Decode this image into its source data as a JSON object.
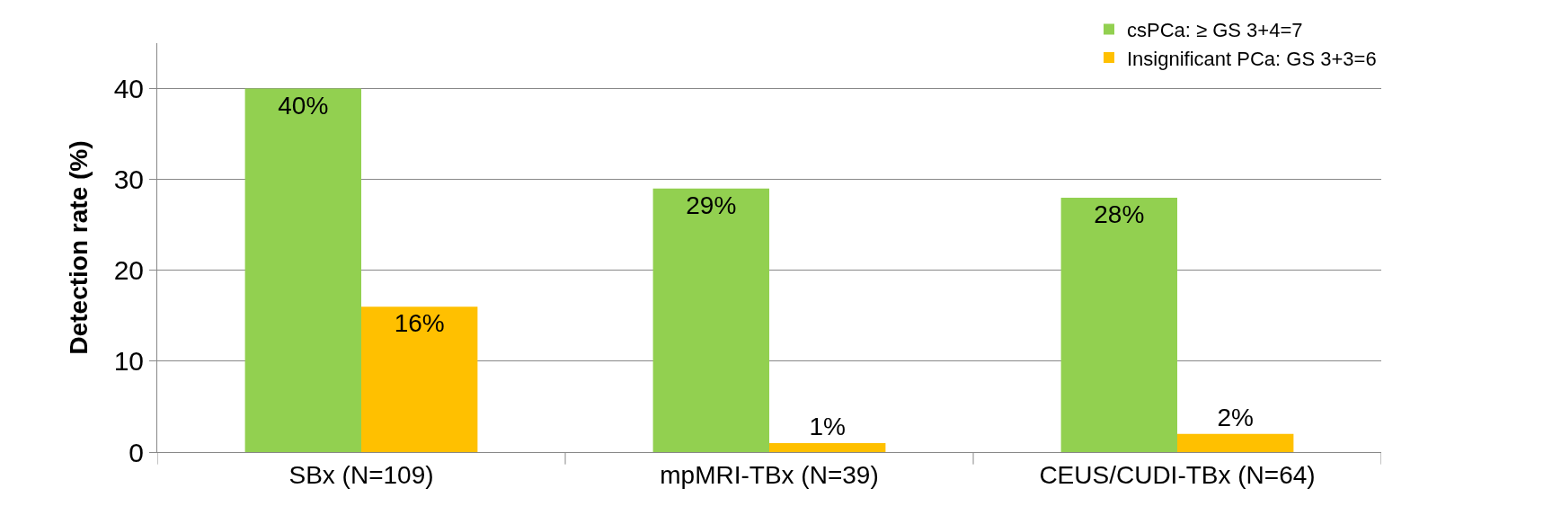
{
  "chart_data": {
    "type": "bar",
    "ylabel": "Detection rate (%)",
    "categories": [
      "SBx (N=109)",
      "mpMRI-TBx (N=39)",
      "CEUS/CUDI-TBx (N=64)"
    ],
    "series": [
      {
        "name": "csPCa: ≥ GS 3+4=7",
        "color": "#92d050",
        "values": [
          40,
          29,
          28
        ],
        "value_labels": [
          "40%",
          "29%",
          "28%"
        ]
      },
      {
        "name": "Insignificant PCa: GS 3+3=6",
        "color": "#ffc000",
        "values": [
          16,
          1,
          2
        ],
        "value_labels": [
          "16%",
          "1%",
          "2%"
        ]
      }
    ],
    "ylim": [
      0,
      45
    ],
    "yticks": [
      0,
      10,
      20,
      30,
      40
    ],
    "grid": "y",
    "legend": "top right"
  }
}
